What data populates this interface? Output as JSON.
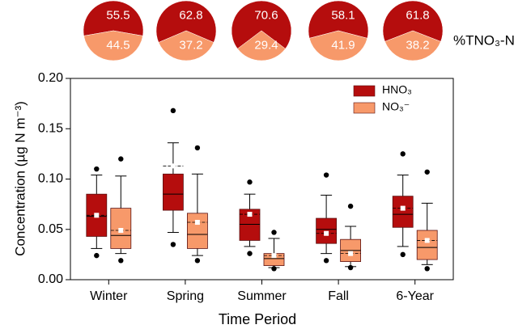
{
  "chart_data": [
    {
      "type": "pie",
      "categories": [
        "HNO₃",
        "NO₃⁻"
      ],
      "values": [
        55.5,
        44.5
      ],
      "colors": [
        "#b50d0d",
        "#f7996a"
      ]
    },
    {
      "type": "pie",
      "categories": [
        "HNO₃",
        "NO₃⁻"
      ],
      "values": [
        62.8,
        37.2
      ],
      "colors": [
        "#b50d0d",
        "#f7996a"
      ]
    },
    {
      "type": "pie",
      "categories": [
        "HNO₃",
        "NO₃⁻"
      ],
      "values": [
        70.6,
        29.4
      ],
      "colors": [
        "#b50d0d",
        "#f7996a"
      ]
    },
    {
      "type": "pie",
      "categories": [
        "HNO₃",
        "NO₃⁻"
      ],
      "values": [
        58.1,
        41.9
      ],
      "colors": [
        "#b50d0d",
        "#f7996a"
      ]
    },
    {
      "type": "pie",
      "categories": [
        "HNO₃",
        "NO₃⁻"
      ],
      "values": [
        61.8,
        38.2
      ],
      "colors": [
        "#b50d0d",
        "#f7996a"
      ]
    },
    {
      "type": "box",
      "annotation": "%TNO₃-N",
      "x_label": "Time Period",
      "y_label": "Concentration (µg N m⁻³)",
      "categories": [
        "Winter",
        "Spring",
        "Summer",
        "Fall",
        "6-Year"
      ],
      "ylim": [
        0,
        0.2
      ],
      "yticks": [
        {
          "value": 0,
          "label": "0.00"
        },
        {
          "value": 0.05,
          "label": "0.05"
        },
        {
          "value": 0.1,
          "label": "0.10"
        },
        {
          "value": 0.15,
          "label": "0.15"
        },
        {
          "value": 0.2,
          "label": "0.20"
        }
      ],
      "legend": "top-right",
      "series": [
        {
          "name": "HNO₃",
          "color": "#b50d0d",
          "stats": [
            {
              "whislo": 0.031,
              "q1": 0.043,
              "med": 0.063,
              "q3": 0.085,
              "whishi": 0.104,
              "mean": 0.064,
              "fliers": [
                0.024,
                0.11
              ]
            },
            {
              "whislo": 0.047,
              "q1": 0.069,
              "med": 0.085,
              "q3": 0.105,
              "whishi": 0.136,
              "mean": 0.113,
              "fliers": [
                0.035,
                0.168
              ]
            },
            {
              "whislo": 0.033,
              "q1": 0.039,
              "med": 0.055,
              "q3": 0.07,
              "whishi": 0.085,
              "mean": 0.065,
              "fliers": [
                0.026,
                0.097
              ]
            },
            {
              "whislo": 0.026,
              "q1": 0.036,
              "med": 0.05,
              "q3": 0.061,
              "whishi": 0.084,
              "mean": 0.046,
              "fliers": [
                0.019,
                0.104
              ]
            },
            {
              "whislo": 0.033,
              "q1": 0.052,
              "med": 0.065,
              "q3": 0.083,
              "whishi": 0.104,
              "mean": 0.071,
              "fliers": [
                0.025,
                0.125
              ]
            }
          ]
        },
        {
          "name": "NO₃⁻",
          "color": "#f7996a",
          "stats": [
            {
              "whislo": 0.026,
              "q1": 0.031,
              "med": 0.044,
              "q3": 0.071,
              "whishi": 0.103,
              "mean": 0.049,
              "fliers": [
                0.019,
                0.12
              ]
            },
            {
              "whislo": 0.024,
              "q1": 0.031,
              "med": 0.045,
              "q3": 0.066,
              "whishi": 0.105,
              "mean": 0.057,
              "fliers": [
                0.019,
                0.131
              ]
            },
            {
              "whislo": 0.012,
              "q1": 0.014,
              "med": 0.021,
              "q3": 0.026,
              "whishi": 0.041,
              "mean": 0.024,
              "fliers": [
                0.011,
                0.047
              ]
            },
            {
              "whislo": 0.013,
              "q1": 0.018,
              "med": 0.029,
              "q3": 0.04,
              "whishi": 0.053,
              "mean": 0.026,
              "fliers": [
                0.012,
                0.073
              ]
            },
            {
              "whislo": 0.015,
              "q1": 0.02,
              "med": 0.032,
              "q3": 0.049,
              "whishi": 0.076,
              "mean": 0.039,
              "fliers": [
                0.011,
                0.107
              ]
            }
          ]
        }
      ]
    }
  ]
}
